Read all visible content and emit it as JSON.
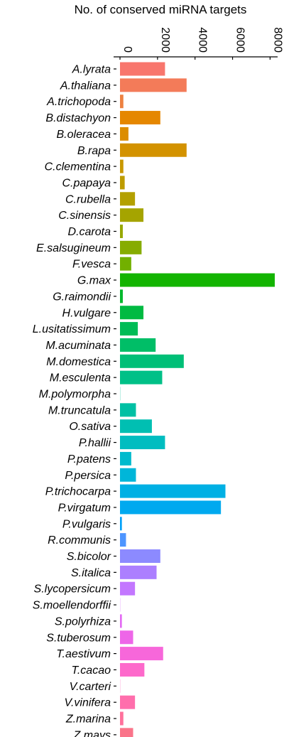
{
  "chart_data": {
    "type": "bar",
    "orientation": "horizontal",
    "xlabel": "No. of conserved miRNA targets",
    "xlabel_position": "top",
    "xlim": [
      0,
      8300
    ],
    "ticks": [
      0,
      2000,
      4000,
      6000,
      8000
    ],
    "tick_labels": [
      "0",
      "2000",
      "4000",
      "6000",
      "8000"
    ],
    "tick_label_rotation": "vertical",
    "grid": false,
    "categories": [
      "A.lyrata",
      "A.thaliana",
      "A.trichopoda",
      "B.distachyon",
      "B.oleracea",
      "B.rapa",
      "C.clementina",
      "C.papaya",
      "C.rubella",
      "C.sinensis",
      "D.carota",
      "E.salsugineum",
      "F.vesca",
      "G.max",
      "G.raimondii",
      "H.vulgare",
      "L.usitatissimum",
      "M.acuminata",
      "M.domestica",
      "M.esculenta",
      "M.polymorpha",
      "M.truncatula",
      "O.sativa",
      "P.hallii",
      "P.patens",
      "P.persica",
      "P.trichocarpa",
      "P.virgatum",
      "P.vulgaris",
      "R.communis",
      "S.bicolor",
      "S.italica",
      "S.lycopersicum",
      "S.moellendorffii",
      "S.polyrhiza",
      "S.tuberosum",
      "T.aestivum",
      "T.cacao",
      "V.carteri",
      "V.vinifera",
      "Z.marina",
      "Z.mays"
    ],
    "values": [
      2400,
      3550,
      180,
      2150,
      450,
      3550,
      180,
      250,
      800,
      1250,
      150,
      1150,
      600,
      8250,
      150,
      1250,
      950,
      1900,
      3400,
      2250,
      10,
      850,
      1700,
      2400,
      600,
      850,
      5620,
      5380,
      100,
      320,
      2150,
      1950,
      800,
      10,
      100,
      700,
      2300,
      1300,
      10,
      800,
      180,
      700
    ],
    "colors": [
      "#F8766D",
      "#F37B59",
      "#ED8141",
      "#E58700",
      "#DC8D00",
      "#D39200",
      "#C99800",
      "#BE9C00",
      "#B3A000",
      "#A5A400",
      "#97A800",
      "#86AC00",
      "#72B000",
      "#13B401",
      "#00B82B",
      "#00BA42",
      "#00BC56",
      "#00BE67",
      "#00BF77",
      "#00C087",
      "#00C096",
      "#00C0A4",
      "#00BFB2",
      "#00BDC0",
      "#00BACD",
      "#00B6D9",
      "#00B0E4",
      "#00A9EF",
      "#00A0F9",
      "#4D95FF",
      "#8C8AFF",
      "#AC7FFF",
      "#C377FF",
      "#D46FFF",
      "#E36AF4",
      "#EE66E8",
      "#F767DA",
      "#FD69CB",
      "#FF6BBC",
      "#FF6EAC",
      "#FF719C",
      "#FA748A"
    ]
  }
}
